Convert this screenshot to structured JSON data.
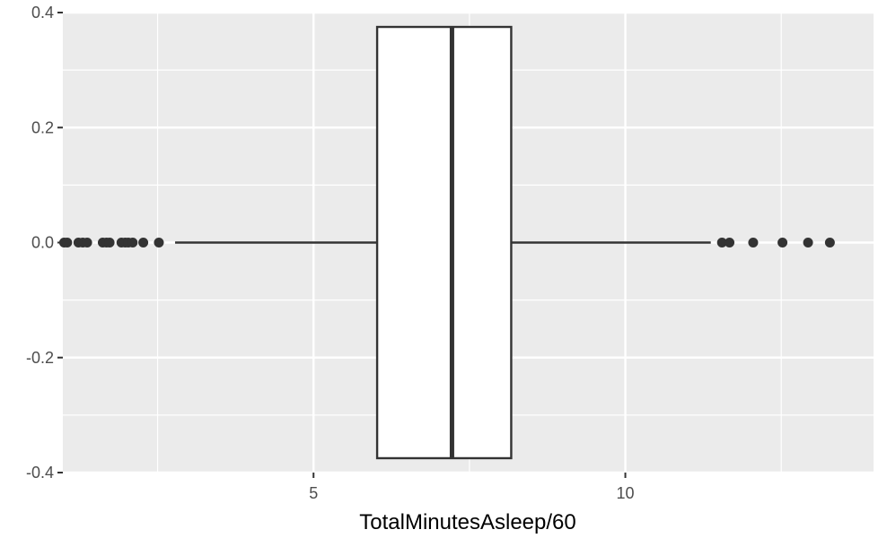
{
  "chart_data": {
    "type": "boxplot",
    "title": "",
    "xlabel": "TotalMinutesAsleep/60",
    "ylabel": "",
    "xlim": [
      0.98,
      13.98
    ],
    "ylim": [
      -0.4,
      0.4
    ],
    "x_ticks": [
      5,
      10
    ],
    "y_ticks": [
      -0.4,
      -0.2,
      0.0,
      0.2,
      0.4
    ],
    "y_tick_labels": [
      "-0.4",
      "-0.2",
      "0.0",
      "0.2",
      "0.4"
    ],
    "x_tick_labels": [
      "5",
      "10"
    ],
    "grid": true,
    "box": {
      "y": 0.0,
      "whisker_low": 2.78,
      "q1": 6.02,
      "median": 7.22,
      "q3": 8.17,
      "whisker_high": 11.37,
      "box_half_height": 0.375
    },
    "outliers": [
      1.0,
      1.05,
      1.23,
      1.3,
      1.37,
      1.62,
      1.68,
      1.73,
      1.92,
      1.98,
      2.03,
      2.1,
      2.27,
      2.52,
      11.55,
      11.67,
      12.05,
      12.52,
      12.93,
      13.28
    ],
    "colors": {
      "panel": "#ebebeb",
      "grid_major": "#ffffff",
      "box_fill": "#ffffff",
      "box_line": "#333333",
      "point": "#333333"
    }
  }
}
